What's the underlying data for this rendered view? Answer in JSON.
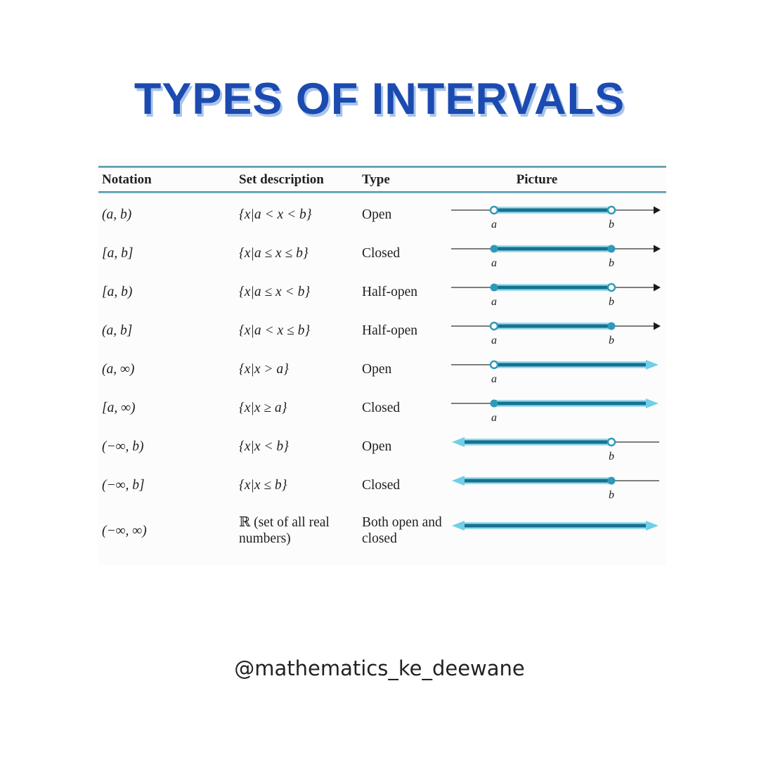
{
  "title": {
    "text": "TYPES OF INTERVALS",
    "color": "#1b4ab1",
    "shadow_color": "#a9c4e6"
  },
  "footer": {
    "handle": "@mathematics_ke_deewane"
  },
  "table": {
    "columns": [
      "Notation",
      "Set description",
      "Type",
      "Picture"
    ],
    "rule_color": "#8cc6d8",
    "line_colors": {
      "segment_dark": "#17718f",
      "segment_light": "#9adcee",
      "point": "#2f99ba",
      "open_fill": "#ffffff",
      "thin": "#555555",
      "teal_arrow": "#6fcfe8",
      "black_arrow": "#1a1a1a",
      "label": "#1f1f1f"
    },
    "rows": [
      {
        "notation": "(a, b)",
        "set": "{x|a < x < b}",
        "type": "Open",
        "picture": {
          "kind": "segment",
          "a": "open",
          "b": "open",
          "labels": [
            "a",
            "b"
          ]
        }
      },
      {
        "notation": "[a, b]",
        "set": "{x|a ≤ x ≤ b}",
        "type": "Closed",
        "picture": {
          "kind": "segment",
          "a": "closed",
          "b": "closed",
          "labels": [
            "a",
            "b"
          ]
        }
      },
      {
        "notation": "[a, b)",
        "set": "{x|a ≤ x < b}",
        "type": "Half-open",
        "picture": {
          "kind": "segment",
          "a": "closed",
          "b": "open",
          "labels": [
            "a",
            "b"
          ]
        }
      },
      {
        "notation": "(a, b]",
        "set": "{x|a < x ≤ b}",
        "type": "Half-open",
        "picture": {
          "kind": "segment",
          "a": "open",
          "b": "closed",
          "labels": [
            "a",
            "b"
          ]
        }
      },
      {
        "notation": "(a, ∞)",
        "set": "{x|x > a}",
        "type": "Open",
        "picture": {
          "kind": "ray-right",
          "a": "open",
          "labels": [
            "a"
          ]
        }
      },
      {
        "notation": "[a, ∞)",
        "set": "{x|x ≥ a}",
        "type": "Closed",
        "picture": {
          "kind": "ray-right",
          "a": "closed",
          "labels": [
            "a"
          ]
        }
      },
      {
        "notation": "(−∞, b)",
        "set": "{x|x < b}",
        "type": "Open",
        "picture": {
          "kind": "ray-left",
          "b": "open",
          "labels": [
            "b"
          ]
        }
      },
      {
        "notation": "(−∞, b]",
        "set": "{x|x ≤ b}",
        "type": "Closed",
        "picture": {
          "kind": "ray-left",
          "b": "closed",
          "labels": [
            "b"
          ]
        }
      },
      {
        "notation": "(−∞, ∞)",
        "set": "ℝ (set of all real numbers)",
        "set_plain": true,
        "type": "Both open and closed",
        "picture": {
          "kind": "full",
          "labels": []
        }
      }
    ]
  }
}
